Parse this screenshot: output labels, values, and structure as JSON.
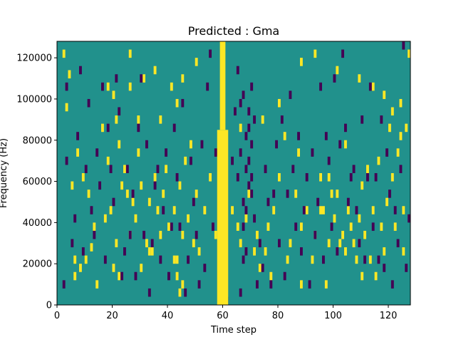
{
  "chart_data": {
    "type": "heatmap",
    "title": "Predicted : Gma",
    "xlabel": "Time step",
    "ylabel": "Frequency (Hz)",
    "xlim": [
      0,
      128
    ],
    "ylim": [
      0,
      128000
    ],
    "x_ticks": [
      0,
      20,
      40,
      60,
      80,
      100,
      120
    ],
    "x_tick_labels": [
      "0",
      "20",
      "40",
      "60",
      "80",
      "100",
      "120"
    ],
    "y_ticks": [
      0,
      20000,
      40000,
      60000,
      80000,
      100000,
      120000
    ],
    "y_tick_labels": [
      "0",
      "20000",
      "40000",
      "60000",
      "80000",
      "100000",
      "120000"
    ],
    "grid": false,
    "colormap": {
      "background": "#21918c",
      "high": "#fde725",
      "low": "#440154"
    },
    "value_levels": {
      "background": 0,
      "high": 1,
      "low": -1
    },
    "cell_width_steps": 1,
    "cell_height_hz": 4000,
    "bands": [
      {
        "x0": 58,
        "x1": 62,
        "y0": 0,
        "y1": 85000,
        "value": 1
      },
      {
        "x0": 59,
        "x1": 61,
        "y0": 85000,
        "y1": 128000,
        "value": 1
      }
    ],
    "cells_high": [
      [
        2,
        120000
      ],
      [
        4,
        110000
      ],
      [
        3,
        94000
      ],
      [
        7,
        72000
      ],
      [
        5,
        56000
      ],
      [
        6,
        12000
      ],
      [
        6,
        20000
      ],
      [
        9,
        60000
      ],
      [
        11,
        52000
      ],
      [
        12,
        26000
      ],
      [
        13,
        36000
      ],
      [
        16,
        84000
      ],
      [
        17,
        40000
      ],
      [
        18,
        68000
      ],
      [
        19,
        44000
      ],
      [
        20,
        16000
      ],
      [
        21,
        28000
      ],
      [
        21,
        88000
      ],
      [
        22,
        76000
      ],
      [
        23,
        56000
      ],
      [
        24,
        64000
      ],
      [
        25,
        52000
      ],
      [
        26,
        104000
      ],
      [
        27,
        48000
      ],
      [
        28,
        40000
      ],
      [
        29,
        72000
      ],
      [
        30,
        56000
      ],
      [
        31,
        108000
      ],
      [
        32,
        28000
      ],
      [
        33,
        48000
      ],
      [
        34,
        24000
      ],
      [
        35,
        60000
      ],
      [
        36,
        44000
      ],
      [
        37,
        88000
      ],
      [
        38,
        52000
      ],
      [
        39,
        64000
      ],
      [
        40,
        36000
      ],
      [
        41,
        104000
      ],
      [
        42,
        44000
      ],
      [
        43,
        20000
      ],
      [
        44,
        56000
      ],
      [
        45,
        32000
      ],
      [
        46,
        68000
      ],
      [
        47,
        40000
      ],
      [
        48,
        76000
      ],
      [
        49,
        28000
      ],
      [
        50,
        52000
      ],
      [
        51,
        24000
      ],
      [
        53,
        44000
      ],
      [
        55,
        60000
      ],
      [
        57,
        32000
      ],
      [
        63,
        44000
      ],
      [
        65,
        36000
      ],
      [
        66,
        28000
      ],
      [
        68,
        40000
      ],
      [
        69,
        52000
      ],
      [
        72,
        32000
      ],
      [
        75,
        24000
      ],
      [
        76,
        36000
      ],
      [
        78,
        44000
      ],
      [
        80,
        60000
      ],
      [
        82,
        80000
      ],
      [
        84,
        28000
      ],
      [
        86,
        52000
      ],
      [
        88,
        36000
      ],
      [
        90,
        44000
      ],
      [
        92,
        20000
      ],
      [
        93,
        32000
      ],
      [
        95,
        60000
      ],
      [
        96,
        44000
      ],
      [
        97,
        8000
      ],
      [
        98,
        28000
      ],
      [
        100,
        40000
      ],
      [
        101,
        52000
      ],
      [
        103,
        32000
      ],
      [
        104,
        24000
      ],
      [
        105,
        44000
      ],
      [
        106,
        36000
      ],
      [
        107,
        28000
      ],
      [
        108,
        20000
      ],
      [
        109,
        40000
      ],
      [
        110,
        56000
      ],
      [
        111,
        32000
      ],
      [
        112,
        64000
      ],
      [
        113,
        20000
      ],
      [
        114,
        44000
      ],
      [
        115,
        12000
      ],
      [
        116,
        68000
      ],
      [
        117,
        36000
      ],
      [
        118,
        24000
      ],
      [
        119,
        48000
      ],
      [
        120,
        84000
      ],
      [
        121,
        60000
      ],
      [
        122,
        36000
      ],
      [
        123,
        72000
      ],
      [
        124,
        96000
      ],
      [
        125,
        44000
      ],
      [
        126,
        84000
      ],
      [
        127,
        120000
      ],
      [
        101,
        112000
      ],
      [
        109,
        108000
      ],
      [
        114,
        104000
      ],
      [
        118,
        100000
      ],
      [
        121,
        92000
      ],
      [
        124,
        80000
      ],
      [
        104,
        76000
      ],
      [
        98,
        60000
      ],
      [
        87,
        72000
      ],
      [
        80,
        96000
      ],
      [
        74,
        88000
      ],
      [
        66,
        84000
      ],
      [
        45,
        108000
      ],
      [
        35,
        112000
      ],
      [
        26,
        120000
      ],
      [
        20,
        100000
      ],
      [
        18,
        104000
      ],
      [
        29,
        88000
      ],
      [
        43,
        96000
      ],
      [
        50,
        116000
      ],
      [
        93,
        120000
      ],
      [
        88,
        116000
      ],
      [
        95,
        44000
      ],
      [
        99,
        52000
      ],
      [
        102,
        28000
      ],
      [
        110,
        12000
      ],
      [
        125,
        24000
      ],
      [
        88,
        8000
      ],
      [
        83,
        20000
      ],
      [
        77,
        12000
      ],
      [
        73,
        16000
      ],
      [
        71,
        24000
      ],
      [
        42,
        20000
      ],
      [
        43,
        12000
      ],
      [
        44,
        4000
      ],
      [
        45,
        8000
      ],
      [
        30,
        16000
      ],
      [
        33,
        24000
      ],
      [
        37,
        32000
      ],
      [
        26,
        32000
      ],
      [
        22,
        12000
      ],
      [
        14,
        8000
      ],
      [
        10,
        20000
      ],
      [
        8,
        16000
      ]
    ],
    "cells_low": [
      [
        2,
        8000
      ],
      [
        3,
        68000
      ],
      [
        3,
        104000
      ],
      [
        5,
        28000
      ],
      [
        6,
        40000
      ],
      [
        7,
        80000
      ],
      [
        8,
        112000
      ],
      [
        9,
        24000
      ],
      [
        10,
        64000
      ],
      [
        11,
        96000
      ],
      [
        12,
        44000
      ],
      [
        13,
        32000
      ],
      [
        14,
        72000
      ],
      [
        15,
        56000
      ],
      [
        16,
        104000
      ],
      [
        17,
        20000
      ],
      [
        18,
        84000
      ],
      [
        19,
        64000
      ],
      [
        20,
        48000
      ],
      [
        21,
        108000
      ],
      [
        22,
        92000
      ],
      [
        23,
        12000
      ],
      [
        24,
        24000
      ],
      [
        25,
        64000
      ],
      [
        26,
        32000
      ],
      [
        27,
        52000
      ],
      [
        28,
        12000
      ],
      [
        29,
        84000
      ],
      [
        30,
        108000
      ],
      [
        31,
        32000
      ],
      [
        32,
        76000
      ],
      [
        33,
        4000
      ],
      [
        34,
        28000
      ],
      [
        35,
        56000
      ],
      [
        36,
        64000
      ],
      [
        37,
        20000
      ],
      [
        38,
        44000
      ],
      [
        39,
        72000
      ],
      [
        40,
        12000
      ],
      [
        41,
        36000
      ],
      [
        42,
        84000
      ],
      [
        43,
        60000
      ],
      [
        44,
        36000
      ],
      [
        45,
        96000
      ],
      [
        46,
        4000
      ],
      [
        47,
        20000
      ],
      [
        48,
        68000
      ],
      [
        49,
        48000
      ],
      [
        50,
        32000
      ],
      [
        51,
        8000
      ],
      [
        52,
        76000
      ],
      [
        53,
        16000
      ],
      [
        54,
        104000
      ],
      [
        55,
        120000
      ],
      [
        56,
        36000
      ],
      [
        57,
        72000
      ],
      [
        63,
        68000
      ],
      [
        64,
        92000
      ],
      [
        65,
        60000
      ],
      [
        66,
        72000
      ],
      [
        67,
        100000
      ],
      [
        68,
        64000
      ],
      [
        69,
        84000
      ],
      [
        70,
        76000
      ],
      [
        71,
        40000
      ],
      [
        72,
        8000
      ],
      [
        73,
        28000
      ],
      [
        74,
        16000
      ],
      [
        75,
        64000
      ],
      [
        76,
        48000
      ],
      [
        77,
        8000
      ],
      [
        78,
        52000
      ],
      [
        79,
        76000
      ],
      [
        80,
        28000
      ],
      [
        81,
        88000
      ],
      [
        82,
        12000
      ],
      [
        83,
        52000
      ],
      [
        84,
        100000
      ],
      [
        85,
        64000
      ],
      [
        86,
        36000
      ],
      [
        87,
        80000
      ],
      [
        88,
        24000
      ],
      [
        89,
        44000
      ],
      [
        90,
        60000
      ],
      [
        91,
        8000
      ],
      [
        92,
        72000
      ],
      [
        93,
        32000
      ],
      [
        94,
        48000
      ],
      [
        95,
        104000
      ],
      [
        96,
        20000
      ],
      [
        97,
        80000
      ],
      [
        98,
        68000
      ],
      [
        99,
        36000
      ],
      [
        100,
        108000
      ],
      [
        101,
        24000
      ],
      [
        102,
        76000
      ],
      [
        103,
        120000
      ],
      [
        104,
        84000
      ],
      [
        105,
        48000
      ],
      [
        106,
        60000
      ],
      [
        107,
        64000
      ],
      [
        108,
        44000
      ],
      [
        109,
        28000
      ],
      [
        110,
        88000
      ],
      [
        111,
        20000
      ],
      [
        112,
        60000
      ],
      [
        113,
        104000
      ],
      [
        114,
        36000
      ],
      [
        115,
        60000
      ],
      [
        116,
        20000
      ],
      [
        117,
        88000
      ],
      [
        118,
        16000
      ],
      [
        119,
        72000
      ],
      [
        120,
        52000
      ],
      [
        121,
        8000
      ],
      [
        122,
        44000
      ],
      [
        123,
        28000
      ],
      [
        124,
        64000
      ],
      [
        125,
        124000
      ],
      [
        126,
        16000
      ],
      [
        127,
        40000
      ],
      [
        65,
        112000
      ],
      [
        66,
        96000
      ],
      [
        67,
        20000
      ],
      [
        68,
        44000
      ],
      [
        69,
        56000
      ],
      [
        67,
        36000
      ],
      [
        68,
        24000
      ],
      [
        69,
        68000
      ],
      [
        70,
        104000
      ],
      [
        71,
        88000
      ],
      [
        70,
        60000
      ],
      [
        66,
        4000
      ],
      [
        60,
        0
      ],
      [
        61,
        0
      ],
      [
        70,
        52000
      ],
      [
        69,
        92000
      ],
      [
        68,
        80000
      ],
      [
        67,
        48000
      ]
    ]
  }
}
